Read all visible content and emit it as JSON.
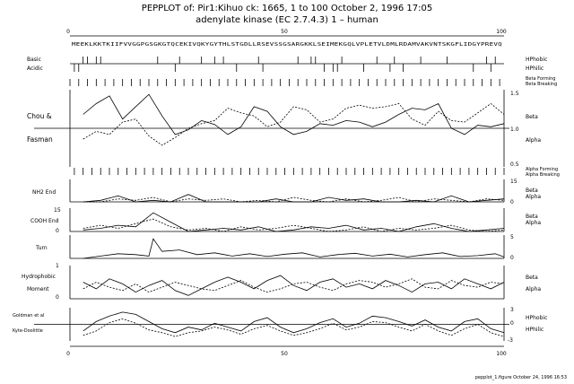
{
  "header": {
    "line1": "PEPPLOT of: Pir1:Kihuo ck: 1665,  1 to 100  October 2, 1996 17:05",
    "line2": "adenylate kinase (EC 2.7.4.3) 1 – human"
  },
  "sequence": "MEEKLKKTKIIFVVGGPGSGKGTQCEKIVQKYGYTHLSTGDLLRSEVSSGSARGKKLSEIMEKGQLVPLETVLDMLRDAMVAKVNTSKGFLIDGYPREVQ",
  "footer": "pepplot_1.figure  October 24, 1996 16:53",
  "chart_data": {
    "type": "line",
    "x_range": [
      1,
      100
    ],
    "x_ticks": [
      "0",
      "50",
      "100"
    ],
    "panels": [
      {
        "id": "basic-acidic",
        "left_labels": [
          "Basic",
          "Acidic"
        ],
        "right_labels": [
          "HPhobic",
          "HPhilic"
        ],
        "type": "tick-marks",
        "basic_positions": [
          4,
          5,
          7,
          8,
          21,
          26,
          31,
          34,
          36,
          44,
          53,
          56,
          57,
          63,
          71,
          75,
          81,
          87,
          96,
          98
        ],
        "acidic_positions": [
          2,
          3,
          25,
          39,
          45,
          59,
          61,
          62,
          68,
          74,
          77,
          93,
          97
        ]
      },
      {
        "id": "chou-fasman",
        "left_labels": [
          "Chou &",
          "Fasman"
        ],
        "right_labels": [
          "Beta",
          "Alpha"
        ],
        "top_legend": [
          "Beta Forming",
          "Beta Breaking"
        ],
        "bottom_legend": [
          "Alpha Forming",
          "Alpha Breaking"
        ],
        "yticks": [
          "1.5",
          "1.0",
          "0.5"
        ],
        "ylim": [
          0.5,
          1.5
        ],
        "series": [
          {
            "name": "Beta",
            "style": "solid",
            "x": [
              4,
              7,
              10,
              13,
              16,
              19,
              22,
              25,
              28,
              31,
              34,
              37,
              40,
              43,
              46,
              49,
              52,
              55,
              58,
              61,
              64,
              67,
              70,
              73,
              76,
              79,
              82,
              85,
              88,
              91,
              94,
              97,
              100
            ],
            "y": [
              1.18,
              1.32,
              1.42,
              1.12,
              1.28,
              1.44,
              1.16,
              0.92,
              0.98,
              1.1,
              1.05,
              0.92,
              1.02,
              1.28,
              1.22,
              1.02,
              0.92,
              0.96,
              1.06,
              1.04,
              1.1,
              1.08,
              1.02,
              1.08,
              1.18,
              1.26,
              1.24,
              1.32,
              1.0,
              0.92,
              1.04,
              1.02,
              1.06
            ]
          },
          {
            "name": "Alpha",
            "style": "dashed",
            "x": [
              4,
              7,
              10,
              13,
              16,
              19,
              22,
              25,
              28,
              31,
              34,
              37,
              40,
              43,
              46,
              49,
              52,
              55,
              58,
              61,
              64,
              67,
              70,
              73,
              76,
              79,
              82,
              85,
              88,
              91,
              94,
              97,
              100
            ],
            "y": [
              0.86,
              0.96,
              0.92,
              1.08,
              1.12,
              0.9,
              0.78,
              0.88,
              1.0,
              1.06,
              1.1,
              1.26,
              1.2,
              1.16,
              1.02,
              1.08,
              1.28,
              1.24,
              1.08,
              1.12,
              1.26,
              1.3,
              1.26,
              1.28,
              1.32,
              1.12,
              1.04,
              1.22,
              1.1,
              1.08,
              1.2,
              1.32,
              1.18
            ]
          }
        ]
      },
      {
        "id": "nh2-end",
        "left_labels": [
          "NH2 End"
        ],
        "right_labels": [
          "Beta",
          "Alpha"
        ],
        "yticks": [
          "15",
          "0"
        ],
        "ylim": [
          0,
          15
        ],
        "series": [
          {
            "name": "Beta",
            "style": "solid",
            "x": [
              4,
              8,
              12,
              16,
              20,
              24,
              28,
              32,
              36,
              40,
              44,
              48,
              52,
              56,
              60,
              64,
              68,
              72,
              76,
              80,
              84,
              88,
              92,
              96,
              100
            ],
            "y": [
              0,
              1,
              4,
              0,
              1,
              0,
              5,
              0,
              0,
              0,
              0,
              2,
              0,
              0,
              3,
              1,
              2,
              0,
              0,
              1,
              0,
              4,
              0,
              1,
              2
            ]
          },
          {
            "name": "Alpha",
            "style": "dashed",
            "x": [
              4,
              8,
              12,
              16,
              20,
              24,
              28,
              32,
              36,
              40,
              44,
              48,
              52,
              56,
              60,
              64,
              68,
              72,
              76,
              80,
              84,
              88,
              92,
              96,
              100
            ],
            "y": [
              0,
              0,
              2,
              1,
              3,
              0,
              2,
              1,
              2,
              0,
              1,
              0,
              3,
              1,
              0,
              2,
              0,
              1,
              3,
              0,
              2,
              1,
              0,
              2,
              1
            ]
          }
        ]
      },
      {
        "id": "cooh-end",
        "left_labels": [
          "COOH End"
        ],
        "right_labels": [
          "Beta",
          "Alpha"
        ],
        "yticks": [
          "15",
          "0"
        ],
        "ylim": [
          0,
          15
        ],
        "series": [
          {
            "name": "Beta",
            "style": "solid",
            "x": [
              4,
              8,
              12,
              16,
              20,
              24,
              28,
              32,
              36,
              40,
              44,
              48,
              52,
              56,
              60,
              64,
              68,
              72,
              76,
              80,
              84,
              88,
              92,
              96,
              100
            ],
            "y": [
              1,
              2,
              4,
              3,
              12,
              6,
              0,
              1,
              2,
              1,
              3,
              0,
              1,
              3,
              2,
              4,
              1,
              2,
              0,
              3,
              5,
              2,
              0,
              1,
              2
            ]
          },
          {
            "name": "Alpha",
            "style": "dashed",
            "x": [
              4,
              8,
              12,
              16,
              20,
              24,
              28,
              32,
              36,
              40,
              44,
              48,
              52,
              56,
              60,
              64,
              68,
              72,
              76,
              80,
              84,
              88,
              92,
              96,
              100
            ],
            "y": [
              2,
              4,
              2,
              5,
              8,
              3,
              1,
              2,
              0,
              3,
              1,
              2,
              4,
              2,
              0,
              1,
              3,
              0,
              2,
              1,
              2,
              4,
              1,
              0,
              1
            ]
          }
        ]
      },
      {
        "id": "turn",
        "left_labels": [
          "Turn"
        ],
        "right_labels": [],
        "yticks": [
          "5",
          "0"
        ],
        "ylim": [
          0,
          5
        ],
        "series": [
          {
            "name": "Turn",
            "style": "solid",
            "x": [
              4,
              8,
              12,
              16,
              19,
              20,
              22,
              26,
              30,
              34,
              38,
              42,
              46,
              50,
              54,
              58,
              62,
              66,
              70,
              74,
              78,
              82,
              86,
              90,
              94,
              98,
              100
            ],
            "y": [
              0,
              0.5,
              1,
              0.8,
              0.5,
              4.2,
              1.5,
              1.8,
              0.8,
              1.2,
              0.5,
              1.0,
              0.4,
              0.9,
              1.2,
              0.3,
              0.8,
              1.1,
              0.5,
              0.9,
              0.3,
              0.8,
              1.2,
              0.4,
              0.6,
              1.0,
              0.3
            ]
          }
        ]
      },
      {
        "id": "hydrophobic-moment",
        "left_labels": [
          "Hydrophobic",
          "Moment"
        ],
        "right_labels": [
          "Beta",
          "Alpha"
        ],
        "yticks": [
          "1",
          "0"
        ],
        "ylim": [
          0,
          1
        ],
        "series": [
          {
            "name": "Beta",
            "style": "solid",
            "x": [
              4,
              7,
              10,
              13,
              16,
              19,
              22,
              25,
              28,
              31,
              34,
              37,
              40,
              43,
              46,
              49,
              52,
              55,
              58,
              61,
              64,
              67,
              70,
              73,
              76,
              79,
              82,
              85,
              88,
              91,
              94,
              97,
              100
            ],
            "y": [
              0.5,
              0.3,
              0.6,
              0.45,
              0.2,
              0.4,
              0.55,
              0.25,
              0.1,
              0.3,
              0.5,
              0.65,
              0.5,
              0.3,
              0.55,
              0.7,
              0.4,
              0.25,
              0.5,
              0.6,
              0.35,
              0.45,
              0.3,
              0.55,
              0.4,
              0.2,
              0.45,
              0.5,
              0.3,
              0.6,
              0.45,
              0.3,
              0.5
            ]
          },
          {
            "name": "Alpha",
            "style": "dashed",
            "x": [
              4,
              7,
              10,
              13,
              16,
              19,
              22,
              25,
              28,
              31,
              34,
              37,
              40,
              43,
              46,
              49,
              52,
              55,
              58,
              61,
              64,
              67,
              70,
              73,
              76,
              79,
              82,
              85,
              88,
              91,
              94,
              97,
              100
            ],
            "y": [
              0.3,
              0.5,
              0.35,
              0.25,
              0.45,
              0.2,
              0.35,
              0.5,
              0.4,
              0.3,
              0.25,
              0.4,
              0.55,
              0.35,
              0.2,
              0.3,
              0.45,
              0.5,
              0.35,
              0.25,
              0.45,
              0.55,
              0.5,
              0.35,
              0.45,
              0.6,
              0.35,
              0.3,
              0.55,
              0.4,
              0.35,
              0.5,
              0.45
            ]
          }
        ]
      },
      {
        "id": "goldman-kyte",
        "left_labels": [
          "Goldman et al",
          "Kyte-Doolittle"
        ],
        "right_labels": [
          "HPhobic",
          "HPhilic"
        ],
        "yticks": [
          "3",
          "0",
          "-3"
        ],
        "ylim": [
          -3,
          3
        ],
        "series": [
          {
            "name": "Goldman et al",
            "style": "solid",
            "x": [
              4,
              7,
              10,
              13,
              16,
              19,
              22,
              25,
              28,
              31,
              34,
              37,
              40,
              43,
              46,
              49,
              52,
              55,
              58,
              61,
              64,
              67,
              70,
              73,
              76,
              79,
              82,
              85,
              88,
              91,
              94,
              97,
              100
            ],
            "y": [
              -1.2,
              0.5,
              1.5,
              2.2,
              1.8,
              0.5,
              -0.8,
              -1.5,
              -0.5,
              -1.0,
              0.2,
              -0.5,
              -1.2,
              0.5,
              1.2,
              -0.5,
              -1.5,
              -0.8,
              0.3,
              1.0,
              -0.5,
              0.2,
              1.5,
              1.2,
              0.5,
              -0.3,
              0.8,
              -0.5,
              -1.2,
              0.5,
              1.0,
              -0.8,
              -1.5
            ]
          },
          {
            "name": "Kyte-Doolittle",
            "style": "dashed",
            "x": [
              4,
              7,
              10,
              13,
              16,
              19,
              22,
              25,
              28,
              31,
              34,
              37,
              40,
              43,
              46,
              49,
              52,
              55,
              58,
              61,
              64,
              67,
              70,
              73,
              76,
              79,
              82,
              85,
              88,
              91,
              94,
              97,
              100
            ],
            "y": [
              -2.0,
              -1.2,
              0.3,
              1.0,
              0.2,
              -1.0,
              -1.5,
              -2.2,
              -1.5,
              -1.2,
              -0.5,
              -1.0,
              -1.8,
              -0.8,
              -0.2,
              -1.2,
              -2.0,
              -1.5,
              -0.8,
              0.2,
              -1.0,
              -0.5,
              0.5,
              0.3,
              -0.5,
              -1.2,
              0.0,
              -1.2,
              -2.0,
              -0.8,
              0.0,
              -1.5,
              -2.2
            ]
          }
        ]
      }
    ]
  }
}
